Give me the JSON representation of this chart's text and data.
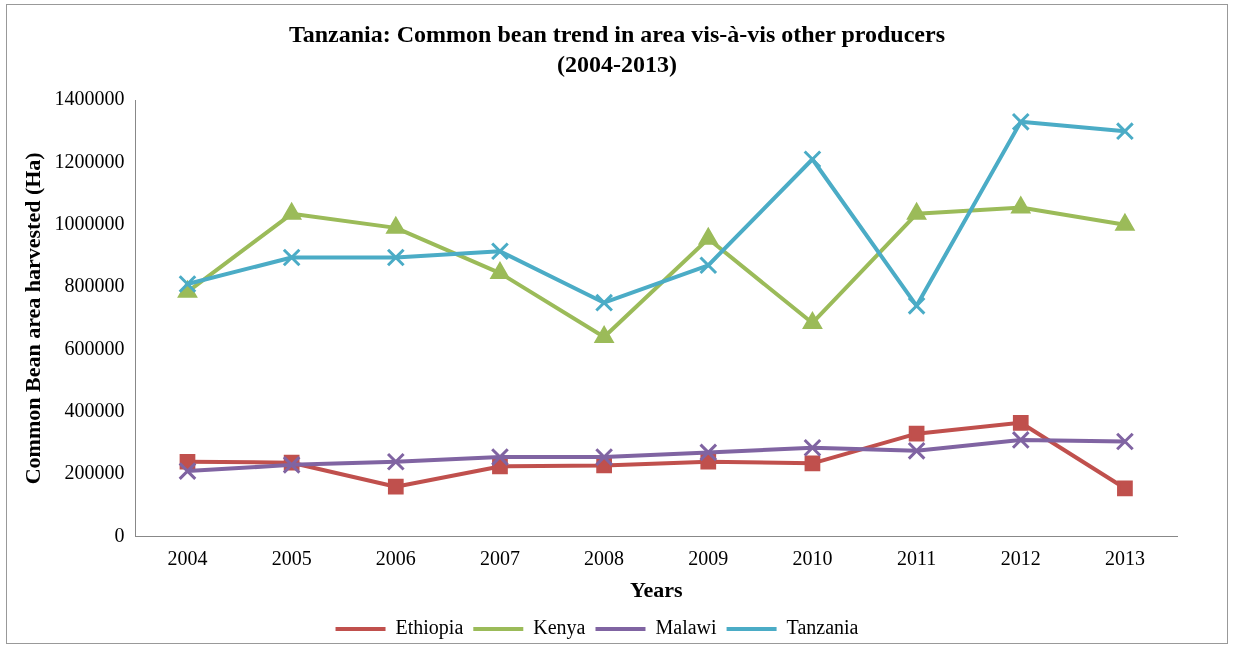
{
  "chart_data": {
    "type": "line",
    "title": "Tanzania: Common bean trend in area vis-à-vis other producers (2004-2013)",
    "xlabel": "Years",
    "ylabel": "Common Bean area harvested (Ha)",
    "categories": [
      "2004",
      "2005",
      "2006",
      "2007",
      "2008",
      "2009",
      "2010",
      "2011",
      "2012",
      "2013"
    ],
    "series": [
      {
        "name": "Ethiopia",
        "color": "#c0504d",
        "marker": "square",
        "values": [
          240000,
          237000,
          160000,
          225000,
          228000,
          240000,
          235000,
          330000,
          365000,
          155000
        ]
      },
      {
        "name": "Kenya",
        "color": "#9bbb59",
        "marker": "triangle",
        "values": [
          785000,
          1035000,
          990000,
          845000,
          640000,
          955000,
          685000,
          1035000,
          1055000,
          1000000
        ]
      },
      {
        "name": "Malawi",
        "color": "#8064a2",
        "marker": "cross",
        "values": [
          210000,
          230000,
          240000,
          255000,
          255000,
          270000,
          285000,
          275000,
          310000,
          305000
        ]
      },
      {
        "name": "Tanzania",
        "color": "#4bacc6",
        "marker": "cross",
        "values": [
          810000,
          895000,
          895000,
          915000,
          750000,
          870000,
          1210000,
          740000,
          1330000,
          1300000
        ]
      }
    ],
    "ylim": [
      0,
      1400000
    ],
    "yticks": [
      0,
      200000,
      400000,
      600000,
      800000,
      1000000,
      1200000,
      1400000
    ],
    "grid": false,
    "legend": "bottom",
    "line_style": "solid"
  }
}
